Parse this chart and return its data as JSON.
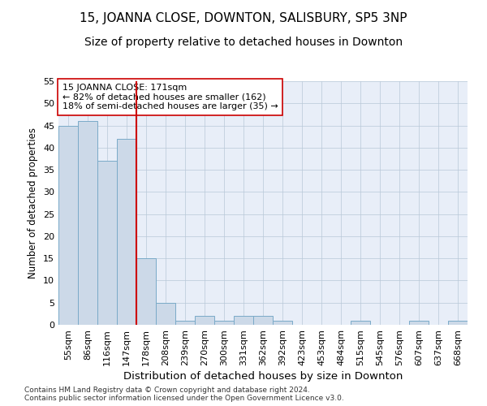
{
  "title": "15, JOANNA CLOSE, DOWNTON, SALISBURY, SP5 3NP",
  "subtitle": "Size of property relative to detached houses in Downton",
  "xlabel": "Distribution of detached houses by size in Downton",
  "ylabel": "Number of detached properties",
  "bar_color": "#ccd9e8",
  "bar_edge_color": "#7aaac8",
  "grid_color": "#b8c8d8",
  "background_color": "#e8eef8",
  "vline_x": 3.5,
  "vline_color": "#cc0000",
  "annotation_text": "15 JOANNA CLOSE: 171sqm\n← 82% of detached houses are smaller (162)\n18% of semi-detached houses are larger (35) →",
  "annotation_box_facecolor": "#ffffff",
  "annotation_box_edge": "#cc0000",
  "categories": [
    "55sqm",
    "86sqm",
    "116sqm",
    "147sqm",
    "178sqm",
    "208sqm",
    "239sqm",
    "270sqm",
    "300sqm",
    "331sqm",
    "362sqm",
    "392sqm",
    "423sqm",
    "453sqm",
    "484sqm",
    "515sqm",
    "545sqm",
    "576sqm",
    "607sqm",
    "637sqm",
    "668sqm"
  ],
  "values": [
    45,
    46,
    37,
    42,
    15,
    5,
    1,
    2,
    1,
    2,
    2,
    1,
    0,
    0,
    0,
    1,
    0,
    0,
    1,
    0,
    1
  ],
  "ylim": [
    0,
    55
  ],
  "yticks": [
    0,
    5,
    10,
    15,
    20,
    25,
    30,
    35,
    40,
    45,
    50,
    55
  ],
  "footnote": "Contains HM Land Registry data © Crown copyright and database right 2024.\nContains public sector information licensed under the Open Government Licence v3.0.",
  "title_fontsize": 11,
  "subtitle_fontsize": 10,
  "xlabel_fontsize": 9.5,
  "ylabel_fontsize": 8.5,
  "tick_fontsize": 8,
  "annotation_fontsize": 8,
  "footnote_fontsize": 6.5
}
